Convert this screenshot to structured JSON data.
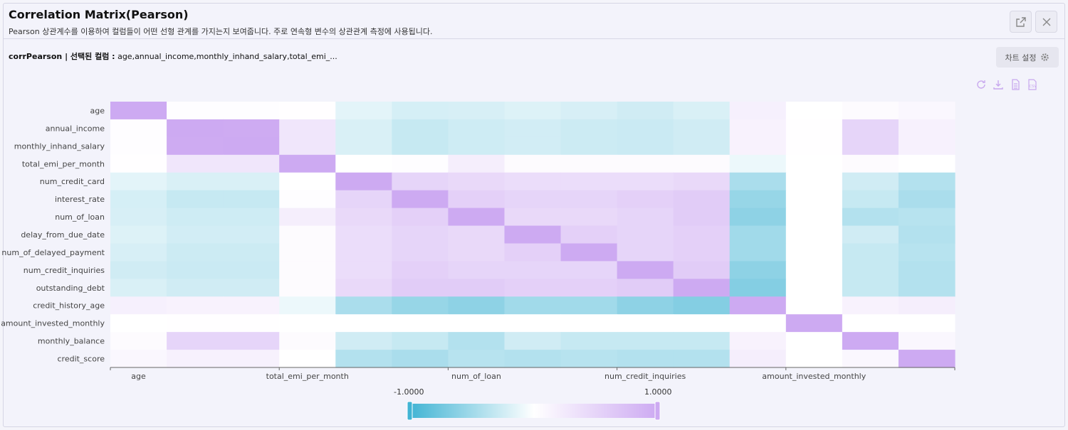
{
  "header": {
    "title": "Correlation Matrix(Pearson)",
    "subtitle": "Pearson 상관계수를 이용하여 컬럼들이 어떤 선형 관계를 가지는지 보여줍니다. 주로 연속형 변수의 상관관계 측정에 사용됩니다."
  },
  "info": {
    "label": "corrPearson | 선택된 컬럼 :",
    "columns": "age,annual_income,monthly_inhand_salary,total_emi_..."
  },
  "settings_label": "차트 설정",
  "icons": [
    "expand-icon",
    "close-icon",
    "gear-icon",
    "refresh-icon",
    "download-icon",
    "document-icon",
    "csv-icon"
  ],
  "colors": {
    "negative": "#42b4d4",
    "neutral": "#ffffff",
    "positive": "#cdaaf2"
  },
  "chart_data": {
    "type": "heatmap",
    "title": "",
    "variables": [
      "age",
      "annual_income",
      "monthly_inhand_salary",
      "total_emi_per_month",
      "num_credit_card",
      "interest_rate",
      "num_of_loan",
      "delay_from_due_date",
      "num_of_delayed_payment",
      "num_credit_inquiries",
      "outstanding_debt",
      "credit_history_age",
      "amount_invested_monthly",
      "monthly_balance",
      "credit_score"
    ],
    "x_tick_labels": [
      "age",
      "total_emi_per_month",
      "num_of_loan",
      "num_credit_inquiries",
      "amount_invested_monthly"
    ],
    "legend": {
      "min_label": "-1.0000",
      "max_label": "1.0000",
      "min": -1,
      "max": 1
    },
    "matrix": [
      [
        1.0,
        0.02,
        0.02,
        0.01,
        -0.15,
        -0.22,
        -0.21,
        -0.18,
        -0.21,
        -0.25,
        -0.2,
        0.18,
        0.0,
        0.05,
        0.1
      ],
      [
        0.02,
        1.0,
        0.99,
        0.3,
        -0.2,
        -0.3,
        -0.26,
        -0.24,
        -0.27,
        -0.28,
        -0.25,
        0.15,
        0.01,
        0.5,
        0.17
      ],
      [
        0.02,
        0.99,
        1.0,
        0.3,
        -0.2,
        -0.3,
        -0.26,
        -0.24,
        -0.27,
        -0.28,
        -0.25,
        0.15,
        0.01,
        0.5,
        0.17
      ],
      [
        0.01,
        0.3,
        0.3,
        1.0,
        0.0,
        0.02,
        0.2,
        0.05,
        0.05,
        0.05,
        0.05,
        -0.1,
        0.0,
        0.05,
        0.0
      ],
      [
        -0.15,
        -0.2,
        -0.2,
        0.0,
        1.0,
        0.5,
        0.45,
        0.4,
        0.4,
        0.4,
        0.45,
        -0.45,
        0.0,
        -0.25,
        -0.4
      ],
      [
        -0.22,
        -0.3,
        -0.3,
        0.02,
        0.5,
        1.0,
        0.55,
        0.5,
        0.5,
        0.55,
        0.6,
        -0.55,
        0.0,
        -0.3,
        -0.45
      ],
      [
        -0.21,
        -0.26,
        -0.26,
        0.2,
        0.45,
        0.55,
        1.0,
        0.45,
        0.45,
        0.5,
        0.6,
        -0.6,
        0.0,
        -0.4,
        -0.38
      ],
      [
        -0.18,
        -0.24,
        -0.24,
        0.05,
        0.4,
        0.5,
        0.45,
        1.0,
        0.55,
        0.5,
        0.55,
        -0.5,
        0.0,
        -0.25,
        -0.4
      ],
      [
        -0.21,
        -0.27,
        -0.27,
        0.05,
        0.4,
        0.5,
        0.45,
        0.55,
        1.0,
        0.5,
        0.55,
        -0.5,
        0.0,
        -0.3,
        -0.38
      ],
      [
        -0.25,
        -0.28,
        -0.28,
        0.05,
        0.4,
        0.55,
        0.5,
        0.5,
        0.5,
        1.0,
        0.6,
        -0.6,
        0.0,
        -0.3,
        -0.4
      ],
      [
        -0.2,
        -0.25,
        -0.25,
        0.05,
        0.45,
        0.6,
        0.6,
        0.55,
        0.55,
        0.6,
        1.0,
        -0.65,
        0.0,
        -0.3,
        -0.4
      ],
      [
        0.18,
        0.15,
        0.15,
        -0.1,
        -0.45,
        -0.55,
        -0.6,
        -0.5,
        -0.5,
        -0.6,
        -0.65,
        1.0,
        0.0,
        0.15,
        0.2
      ],
      [
        0.0,
        0.01,
        0.01,
        0.0,
        0.0,
        0.0,
        0.0,
        0.0,
        0.0,
        0.0,
        0.0,
        0.0,
        1.0,
        0.0,
        0.0
      ],
      [
        0.05,
        0.5,
        0.5,
        0.05,
        -0.25,
        -0.3,
        -0.4,
        -0.25,
        -0.3,
        -0.3,
        -0.3,
        0.15,
        0.0,
        1.0,
        0.1
      ],
      [
        0.1,
        0.17,
        0.17,
        0.0,
        -0.4,
        -0.45,
        -0.38,
        -0.4,
        -0.38,
        -0.4,
        -0.4,
        0.2,
        0.0,
        0.1,
        1.0
      ]
    ]
  }
}
